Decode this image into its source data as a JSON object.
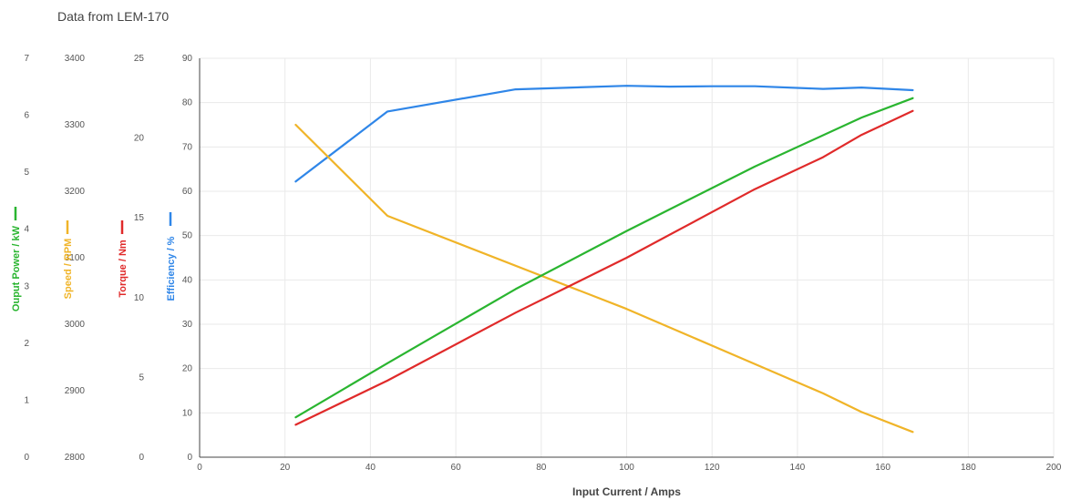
{
  "chart_data": {
    "type": "line",
    "title": "Data from LEM-170",
    "xlabel": "Input Current / Amps",
    "xlim": [
      0,
      200
    ],
    "xticks": [
      0,
      20,
      40,
      60,
      80,
      100,
      120,
      140,
      160,
      180,
      200
    ],
    "grid": true,
    "axes": [
      {
        "id": "power",
        "label": "Ouput Power / kW",
        "color": "#2ab530",
        "lim": [
          0,
          7
        ],
        "ticks": [
          0,
          1,
          2,
          3,
          4,
          5,
          6,
          7
        ]
      },
      {
        "id": "speed",
        "label": "Speed / RPM",
        "color": "#f0b428",
        "lim": [
          2800,
          3400
        ],
        "ticks": [
          2800,
          2900,
          3000,
          3100,
          3200,
          3300,
          3400
        ]
      },
      {
        "id": "torque",
        "label": "Torque / Nm",
        "color": "#e02a2a",
        "lim": [
          0,
          25
        ],
        "ticks": [
          0,
          5,
          10,
          15,
          20,
          25
        ]
      },
      {
        "id": "eff",
        "label": "Efficiency / %",
        "color": "#2f86e8",
        "lim": [
          0,
          90
        ],
        "ticks": [
          0,
          10,
          20,
          30,
          40,
          50,
          60,
          70,
          80,
          90
        ]
      }
    ],
    "series": [
      {
        "axis": "eff",
        "x": [
          22.5,
          44,
          74,
          100,
          110,
          120,
          130,
          146,
          155,
          167
        ],
        "y": [
          62.2,
          78,
          83,
          83.8,
          83.6,
          83.7,
          83.7,
          83.1,
          83.4,
          82.8
        ]
      },
      {
        "axis": "speed",
        "x": [
          22.5,
          44,
          100,
          146,
          155,
          167
        ],
        "y": [
          3300,
          3163,
          3023,
          2896,
          2868,
          2838
        ]
      },
      {
        "axis": "power",
        "x": [
          22.5,
          44,
          74,
          100,
          130,
          155,
          167
        ],
        "y": [
          0.7,
          1.65,
          2.95,
          3.97,
          5.1,
          5.96,
          6.3
        ]
      },
      {
        "axis": "torque",
        "x": [
          22.5,
          44,
          74,
          100,
          130,
          146,
          155,
          167
        ],
        "y": [
          2.03,
          4.8,
          9.06,
          12.5,
          16.8,
          18.8,
          20.2,
          21.7
        ]
      }
    ]
  }
}
